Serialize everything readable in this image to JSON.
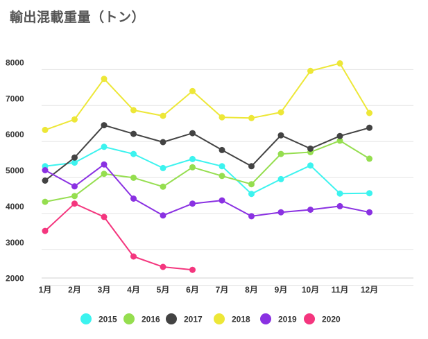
{
  "chart_data": {
    "type": "line",
    "title": "輸出混載重量（トン）",
    "xlabel": "",
    "ylabel": "",
    "categories": [
      "1月",
      "2月",
      "3月",
      "4月",
      "5月",
      "6月",
      "7月",
      "8月",
      "9月",
      "10月",
      "11月",
      "12月"
    ],
    "y_ticks": [
      "2000",
      "3000",
      "4000",
      "5000",
      "6000",
      "7000",
      "8000"
    ],
    "ylim": [
      1800,
      8200
    ],
    "grid": true,
    "legend_position": "bottom",
    "series": [
      {
        "name": "2015",
        "color": "#3cf3ef",
        "values": [
          5120,
          5220,
          5660,
          5460,
          5070,
          5320,
          5120,
          4350,
          4760,
          5140,
          4360,
          4370
        ]
      },
      {
        "name": "2016",
        "color": "#95de4f",
        "values": [
          4130,
          4290,
          4910,
          4800,
          4550,
          5090,
          4850,
          4620,
          5460,
          5510,
          5830,
          5330
        ]
      },
      {
        "name": "2017",
        "color": "#434343",
        "values": [
          4720,
          5360,
          6260,
          6020,
          5790,
          6040,
          5570,
          5120,
          5980,
          5610,
          5960,
          6190
        ]
      },
      {
        "name": "2018",
        "color": "#ede737",
        "values": [
          6130,
          6420,
          7550,
          6680,
          6520,
          7210,
          6480,
          6460,
          6620,
          7770,
          7980,
          6600
        ]
      },
      {
        "name": "2019",
        "color": "#8a31e2",
        "values": [
          5010,
          4560,
          5170,
          4220,
          3750,
          4080,
          4170,
          3730,
          3840,
          3910,
          4010,
          3840
        ]
      },
      {
        "name": "2020",
        "color": "#f4367e",
        "values": [
          3320,
          4080,
          3710,
          2610,
          2320,
          2240,
          null,
          null,
          null,
          null,
          null,
          null
        ]
      }
    ]
  }
}
